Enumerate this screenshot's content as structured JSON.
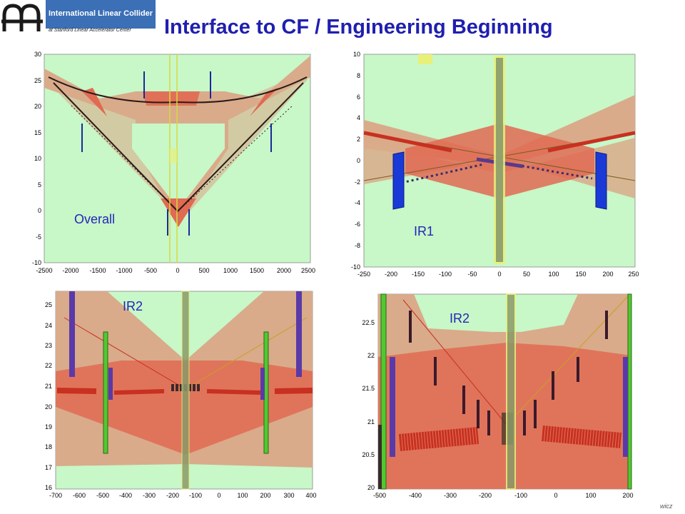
{
  "logo": {
    "line1": "International Linear Collider",
    "line2": "at Stanford Linear Accelerator Center"
  },
  "title": "Interface to CF / Engineering Beginning",
  "author": "wicz",
  "colors": {
    "title": "#1f1fb0",
    "bg": "#c8f7c8",
    "tan": "#d9ab8a",
    "red": "#e06a52",
    "label": "#2525b8"
  },
  "panels": [
    {
      "label": "Overall",
      "x_ticks": [
        "-2500",
        "-2000",
        "-1500",
        "-1000",
        "-500",
        "0",
        "500",
        "1000",
        "1500",
        "2000",
        "2500"
      ],
      "y_ticks": [
        "30",
        "25",
        "20",
        "15",
        "10",
        "5",
        "0",
        "-5",
        "-10"
      ]
    },
    {
      "label": "IR1",
      "x_ticks": [
        "-250",
        "-200",
        "-150",
        "-100",
        "-50",
        "0",
        "50",
        "100",
        "150",
        "200",
        "250"
      ],
      "y_ticks": [
        "10",
        "8",
        "6",
        "4",
        "2",
        "0",
        "-2",
        "-4",
        "-6",
        "-8",
        "-10"
      ]
    },
    {
      "label": "IR2",
      "x_ticks": [
        "-700",
        "-600",
        "-500",
        "-400",
        "-300",
        "-200",
        "-100",
        "0",
        "100",
        "200",
        "300",
        "400"
      ],
      "y_ticks": [
        "25",
        "24",
        "23",
        "22",
        "21",
        "20",
        "19",
        "18",
        "17",
        "16"
      ]
    },
    {
      "label": "IR2",
      "x_ticks": [
        "-500",
        "-400",
        "-300",
        "-200",
        "-100",
        "0",
        "100",
        "200"
      ],
      "y_ticks": [
        "22.5",
        "22",
        "21.5",
        "21",
        "20.5",
        "20"
      ]
    }
  ]
}
